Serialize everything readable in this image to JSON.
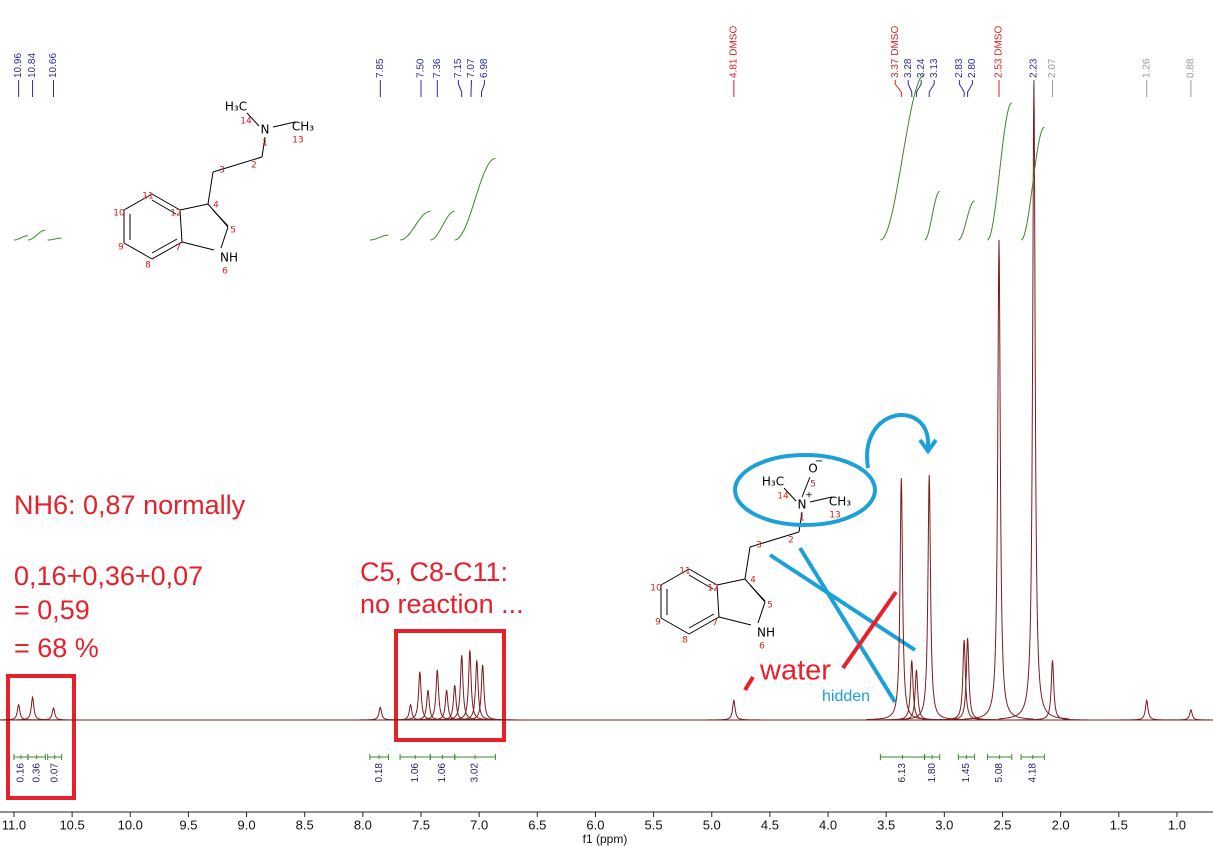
{
  "chart_data": {
    "type": "spectrum",
    "x_label": "f1 (ppm)",
    "xlim": [
      11.12,
      0.69
    ],
    "xticks": [
      {
        "value": 11,
        "label": "11.0"
      },
      10.5,
      {
        "value": 10,
        "label": "10.0"
      },
      9.5,
      {
        "value": 9,
        "label": "9.0"
      },
      8.5,
      {
        "value": 8,
        "label": "8.0"
      },
      7.5,
      {
        "value": 7,
        "label": "7.0"
      },
      6.5,
      {
        "value": 6,
        "label": "6.0"
      },
      5.5,
      {
        "value": 5,
        "label": "5.0"
      },
      4.5,
      {
        "value": 4,
        "label": "4.0"
      },
      3.5,
      {
        "value": 3,
        "label": "3.0"
      },
      2.5,
      {
        "value": 2,
        "label": "2.0"
      },
      1.5,
      {
        "value": 1,
        "label": "1.0"
      }
    ],
    "color": "#7b1c1c",
    "peaks": {
      "x": [
        10.96,
        10.84,
        10.66,
        7.85,
        7.59,
        7.51,
        7.44,
        7.36,
        7.28,
        7.21,
        7.15,
        7.08,
        7.02,
        6.97,
        4.81,
        3.37,
        3.28,
        3.24,
        3.13,
        2.83,
        2.8,
        2.53,
        2.23,
        2.07,
        1.26,
        0.88
      ],
      "values": [
        2.4,
        3.6,
        1.9,
        2.0,
        2.4,
        7.6,
        4.7,
        7.9,
        4.7,
        5.5,
        10.2,
        11.0,
        9.4,
        8.7,
        3.1,
        38.1,
        9.4,
        7.9,
        38.6,
        12.6,
        12.9,
        75.6,
        100,
        9.4,
        3.1,
        1.6
      ]
    },
    "peak_labels": {
      "values": [
        10.96,
        10.84,
        10.66,
        7.85,
        {
          "value": 7.5,
          "label": "7.50"
        },
        7.36,
        7.15,
        7.07,
        6.98,
        {
          "value": 4.81,
          "label": "4.81 DMSO"
        },
        {
          "value": 3.37,
          "label": "3.37 DMSO"
        },
        3.28,
        3.24,
        3.13,
        2.83,
        {
          "value": 2.8,
          "label": "2.80"
        },
        {
          "value": 2.53,
          "label": "2.53 DMSO"
        },
        2.23,
        2.07,
        1.26,
        0.88
      ],
      "colors": [
        "#2b2b9b",
        "#2b2b9b",
        "#2b2b9b",
        "#2b2b9b",
        "#2b2b9b",
        "#2b2b9b",
        "#2b2b9b",
        "#2b2b9b",
        "#2b2b9b",
        "#d42020",
        "#d42020",
        "#2b2b9b",
        "#2b2b9b",
        "#2b2b9b",
        "#2b2b9b",
        "#2b2b9b",
        "#d42020",
        "#2b2b9b",
        "#9a9a9a",
        "#9a9a9a",
        "#9a9a9a"
      ]
    },
    "integrals": {
      "ranges": [
        [
          11.0,
          10.88
        ],
        [
          10.88,
          10.73
        ],
        [
          10.71,
          10.59
        ],
        [
          7.94,
          7.78
        ],
        [
          7.68,
          7.42
        ],
        [
          7.42,
          7.21
        ],
        [
          7.21,
          6.86
        ],
        [
          3.55,
          3.17
        ],
        [
          3.17,
          3.04
        ],
        [
          2.88,
          2.74
        ],
        [
          2.63,
          2.42
        ],
        [
          2.34,
          2.14
        ]
      ],
      "values": [
        0.16,
        0.36,
        0.07,
        0.18,
        1.06,
        1.06,
        3.02,
        6.13,
        {
          "value": 1.8,
          "label": "1.80"
        },
        1.45,
        5.08,
        4.18
      ],
      "color": "#3a8a2a"
    },
    "annotations": [
      "NH6: 0,87 normally",
      "0,16+0,36+0,07",
      "= 0,59",
      "= 68 %",
      "C5, C8-C11:",
      "no reaction ...",
      "water",
      "hidden"
    ],
    "structures": [
      {
        "labels": [
          "H₃C",
          "14",
          "N",
          "1",
          "CH₃",
          "13",
          "2",
          "3",
          "4",
          "5",
          "NH",
          "6",
          "7",
          "8",
          "9",
          "10",
          "11",
          "12"
        ]
      },
      {
        "labels": [
          "H₃C",
          "14",
          "N",
          "1",
          "CH₃",
          "13",
          "2",
          "3",
          "4",
          "5",
          "NH",
          "6",
          "7",
          "8",
          "9",
          "10",
          "11",
          "12",
          "O",
          "−",
          "5",
          "+"
        ]
      }
    ]
  }
}
